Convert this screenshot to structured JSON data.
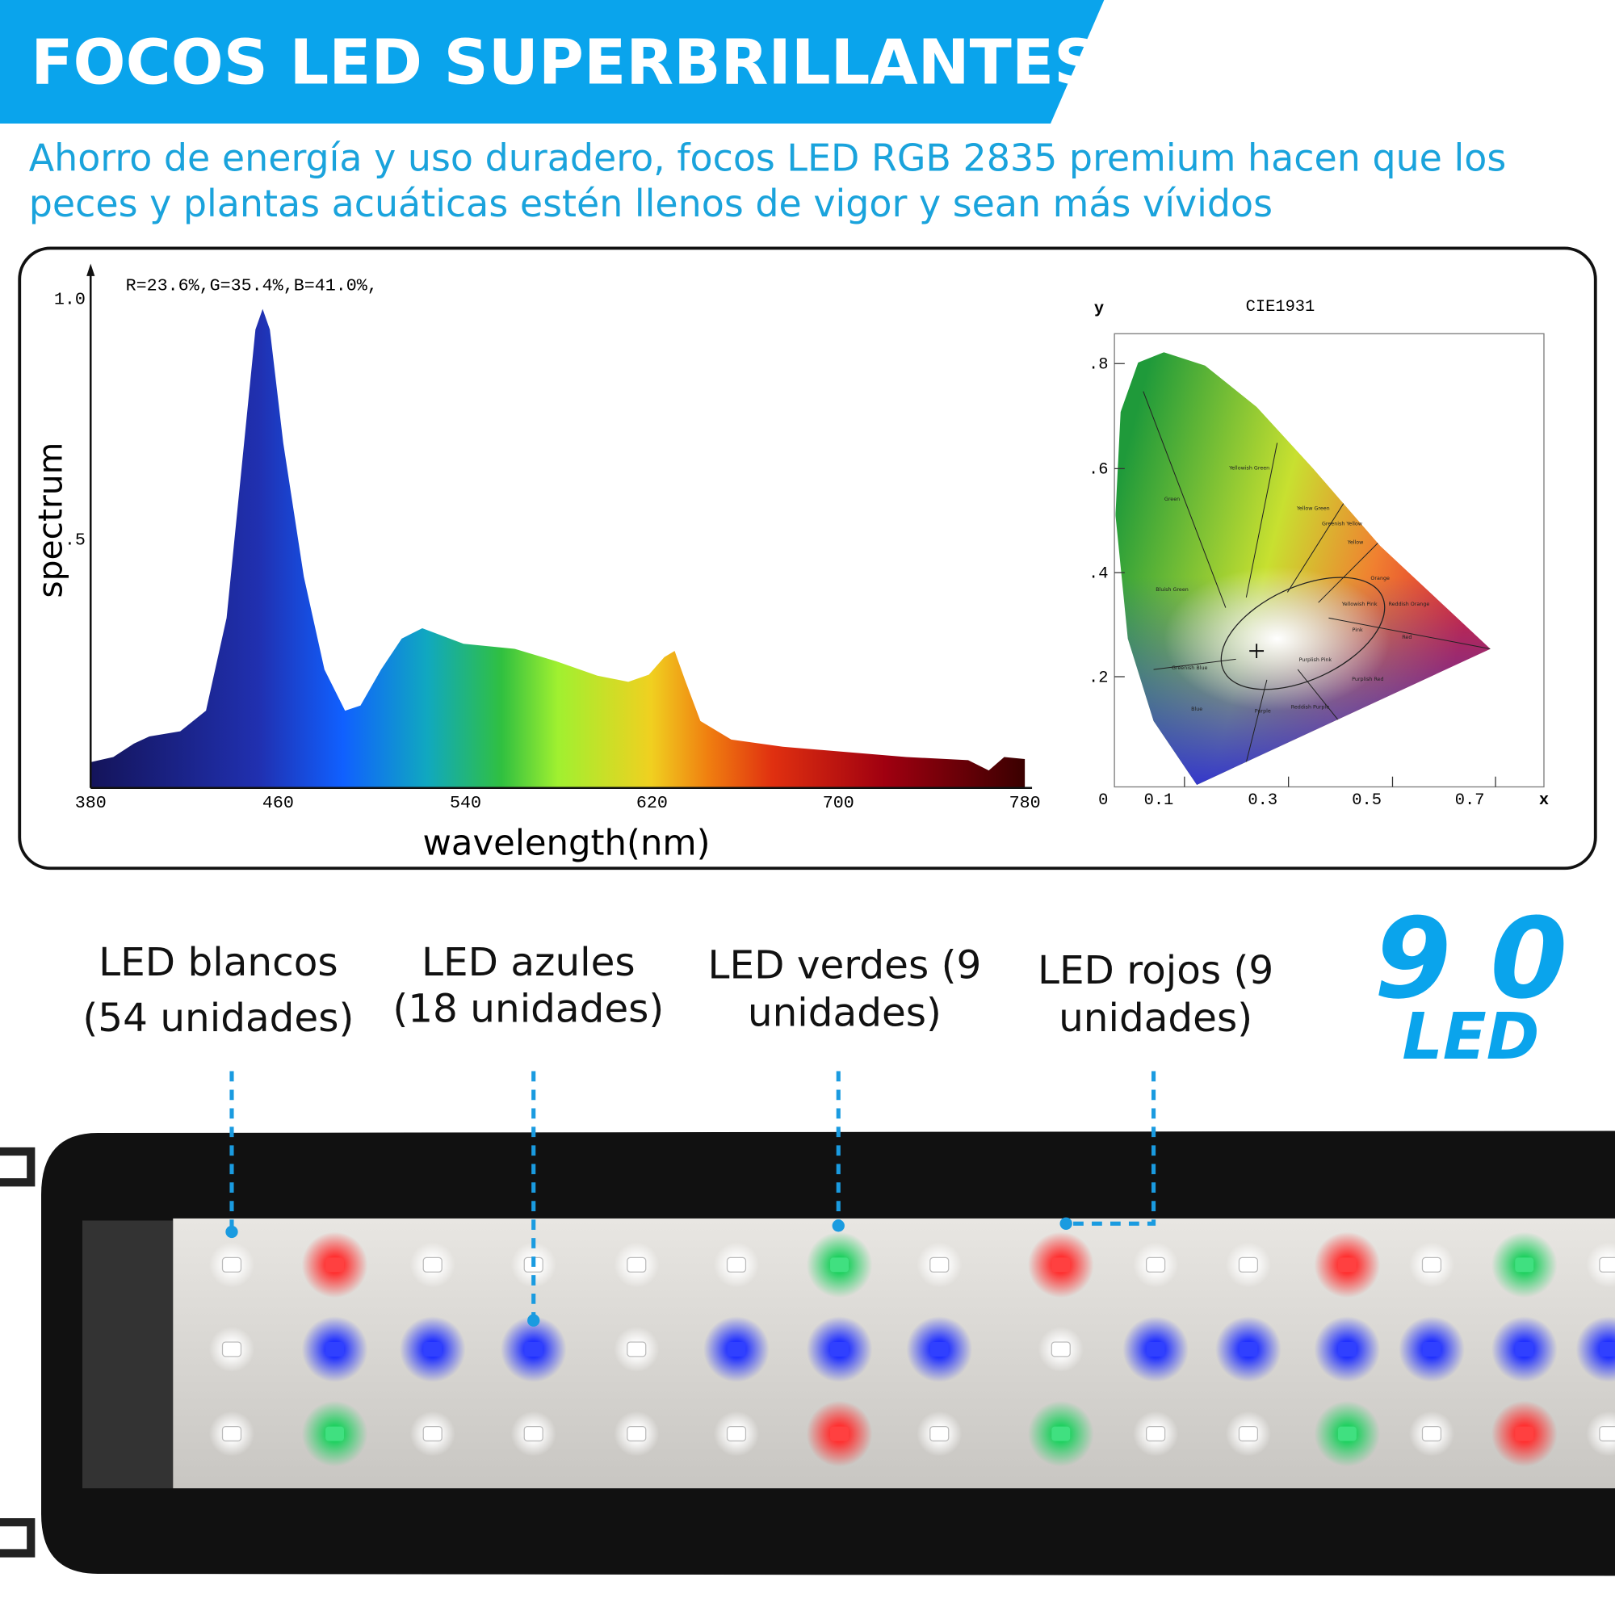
{
  "header": {
    "title": "FOCOS LED SUPERBRILLANTES",
    "subtitle_lines": [
      "Ahorro de energía y uso duradero, focos LED RGB 2835 premium hacen que los",
      "peces y plantas acuáticas estén llenos de vigor y sean más vívidos"
    ]
  },
  "spectrum": {
    "annotation": "R=23.6%,G=35.4%,B=41.0%,",
    "y_label": "spectrum",
    "x_label": "wavelength(nm)",
    "y_ticks": [
      "1.0",
      ".5"
    ],
    "x_ticks": [
      "380",
      "460",
      "540",
      "620",
      "700",
      "780"
    ]
  },
  "cie": {
    "title": "CIE1931",
    "y_axis": "y",
    "x_axis": "x",
    "y_ticks": [
      ".8",
      ".6",
      ".4",
      ".2",
      "0"
    ],
    "x_ticks": [
      "0.1",
      "0.3",
      "0.5",
      "0.7"
    ],
    "regions": [
      "Yellowish Green",
      "Green",
      "Yellow Green",
      "Greenish Yellow",
      "Yellow",
      "Orange",
      "Bluish Green",
      "Yellowish Pink",
      "Reddish Orange",
      "Pink",
      "Red",
      "Greenish Blue",
      "Purplish Pink",
      "Purplish Red",
      "Blue",
      "Purple",
      "Reddish Purple"
    ]
  },
  "leds": [
    {
      "label_lines": [
        "LED blancos",
        "(54 unidades)"
      ]
    },
    {
      "label_lines": [
        "LED azules",
        "(18 unidades)"
      ]
    },
    {
      "label_lines": [
        "LED verdes (9",
        "unidades)"
      ]
    },
    {
      "label_lines": [
        "LED rojos (9",
        "unidades)"
      ]
    }
  ],
  "badge": {
    "number": "9 0",
    "unit": "LED"
  }
}
